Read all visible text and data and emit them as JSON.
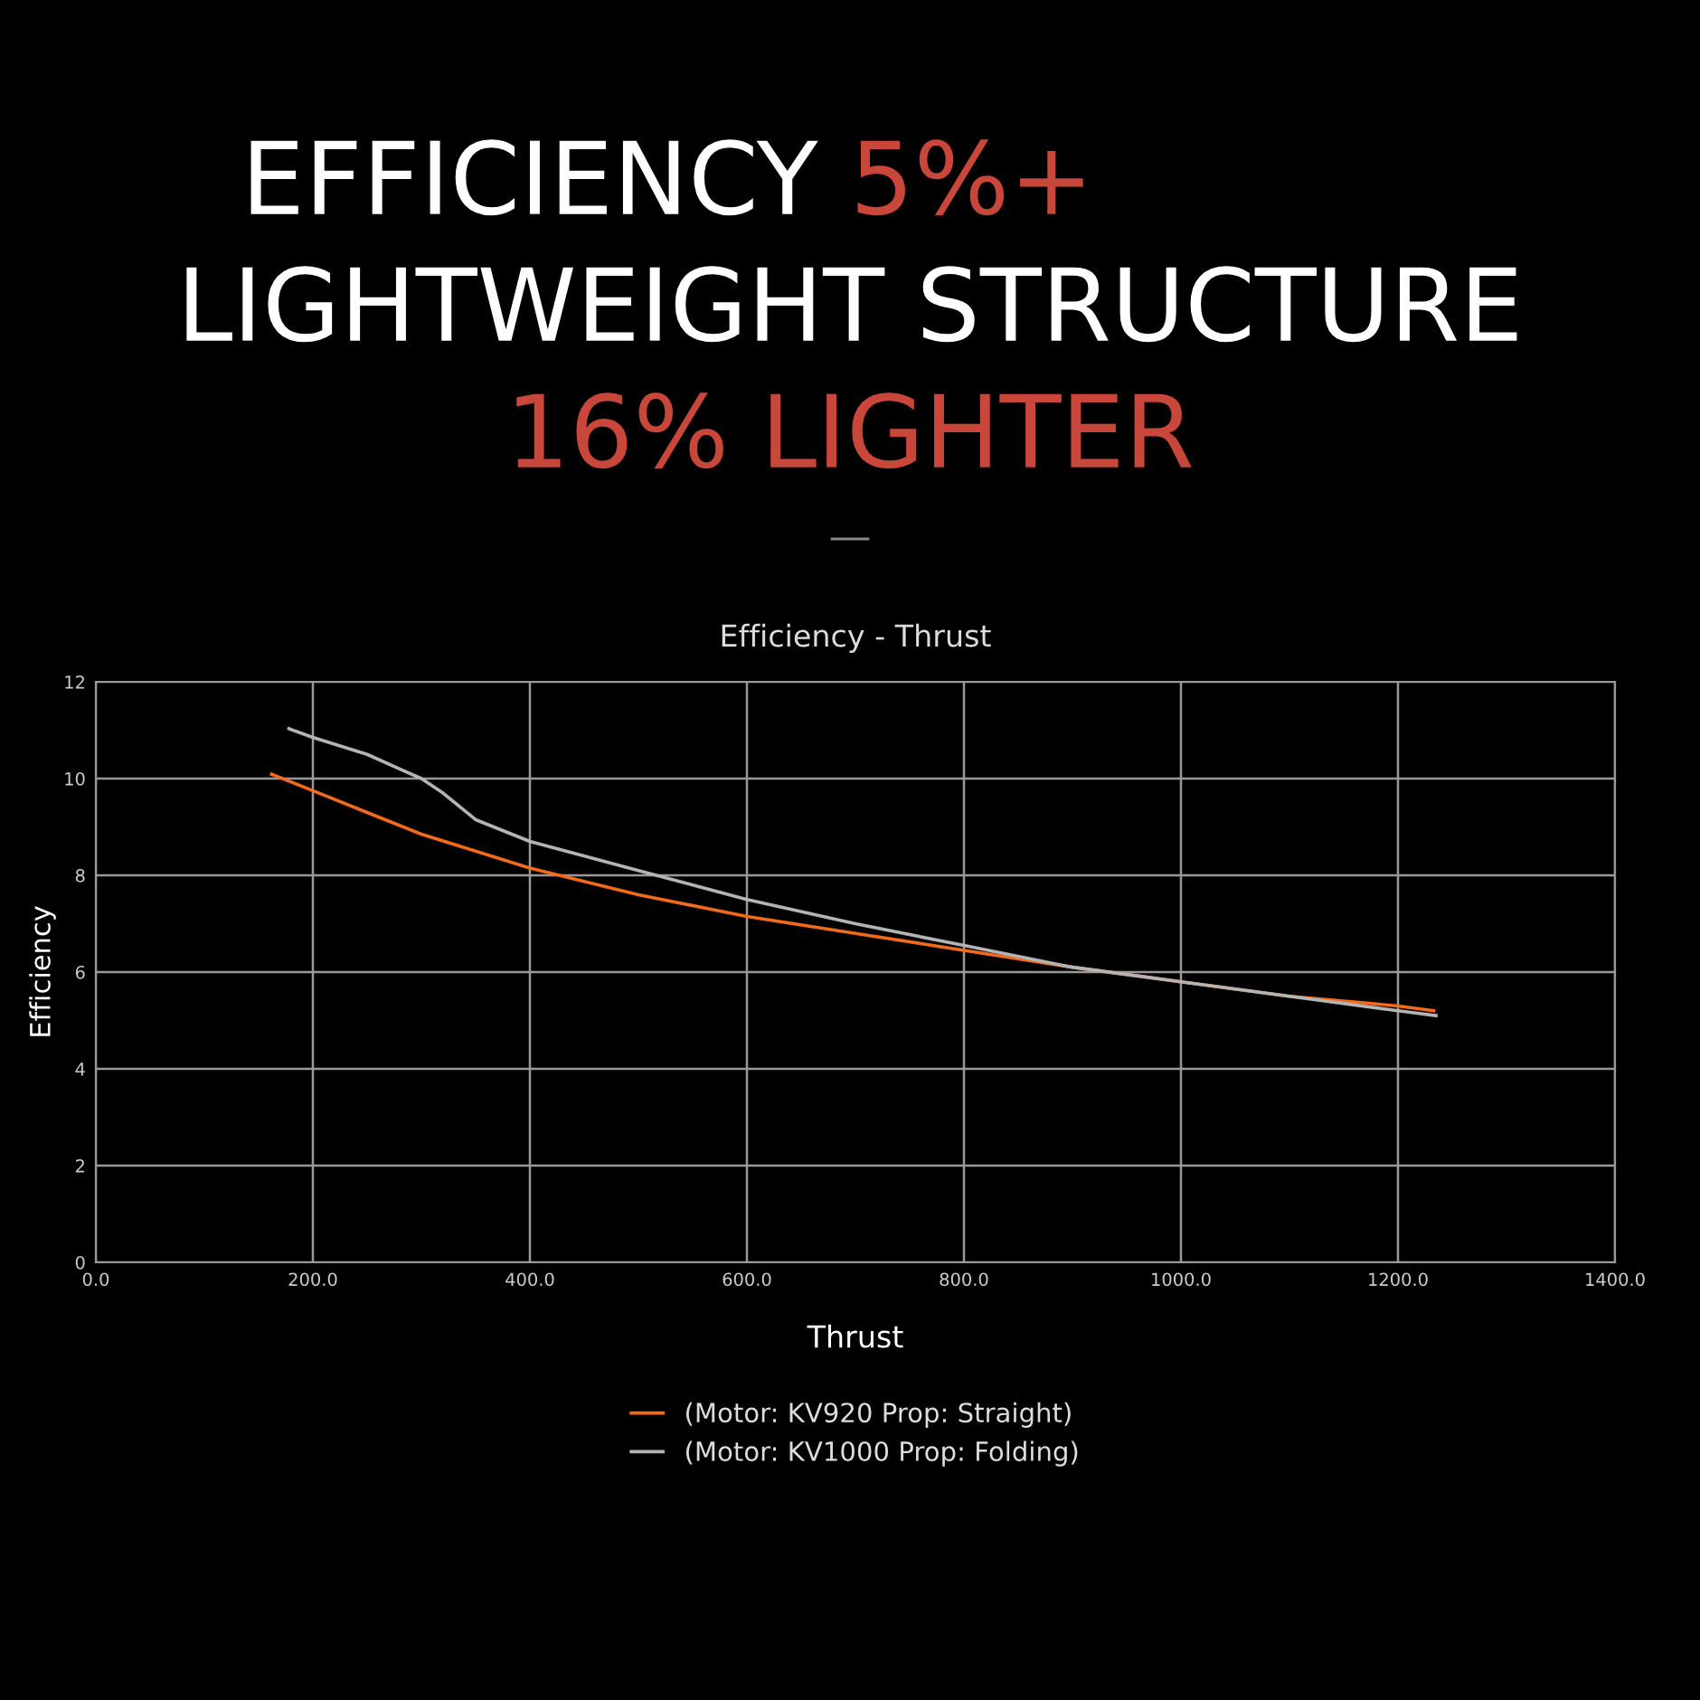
{
  "chart_data": {
    "type": "line",
    "title": "Efficiency - Thrust",
    "xlabel": "Thrust",
    "ylabel": "Efficiency",
    "annotations": [
      "EFFICIENCY",
      "5%+",
      "LIGHTWEIGHT STRUCTURE",
      "16% LIGHTER"
    ],
    "series": [
      {
        "name": "(Motor: KV920 Prop: Straight)",
        "color": "#f26a1b",
        "x": [
          162,
          200,
          250,
          300,
          400,
          500,
          600,
          700,
          800,
          900,
          1000,
          1100,
          1200,
          1233
        ],
        "values": [
          10.09,
          9.75,
          9.3,
          8.85,
          8.15,
          7.6,
          7.15,
          6.8,
          6.45,
          6.1,
          5.8,
          5.5,
          5.3,
          5.2
        ]
      },
      {
        "name": "(Motor: KV1000 Prop: Folding)",
        "color": "#b4b4b4",
        "x": [
          178,
          200,
          250,
          280,
          300,
          320,
          350,
          400,
          500,
          600,
          700,
          800,
          900,
          1000,
          1100,
          1200,
          1235
        ],
        "values": [
          11.03,
          10.85,
          10.5,
          10.2,
          10.0,
          9.7,
          9.15,
          8.7,
          8.1,
          7.5,
          7.0,
          6.55,
          6.1,
          5.8,
          5.5,
          5.2,
          5.1
        ]
      }
    ],
    "xlim": [
      0,
      1400
    ],
    "xticks": [
      {
        "value": 0,
        "label": "0.0"
      },
      {
        "value": 200,
        "label": "200.0"
      },
      {
        "value": 400,
        "label": "400.0"
      },
      {
        "value": 600,
        "label": "600.0"
      },
      {
        "value": 800,
        "label": "800.0"
      },
      {
        "value": 1000,
        "label": "1000.0"
      },
      {
        "value": 1200,
        "label": "1200.0"
      },
      {
        "value": 1400,
        "label": "1400.0"
      }
    ],
    "ylim": [
      0,
      12
    ],
    "yticks": [
      0,
      2,
      4,
      6,
      8,
      10,
      12
    ],
    "grid": true,
    "legend": "bottom",
    "marker": "none",
    "line_style": "solid"
  }
}
